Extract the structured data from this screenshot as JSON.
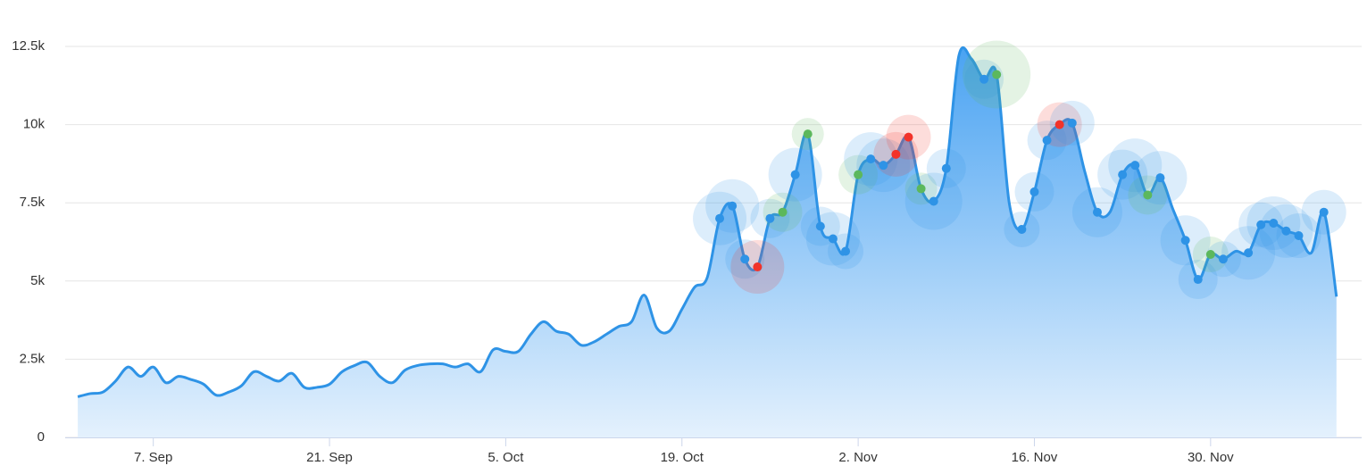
{
  "chart_data": {
    "type": "area",
    "x": [
      1,
      2,
      3,
      4,
      5,
      6,
      7,
      8,
      9,
      10,
      11,
      12,
      13,
      14,
      15,
      16,
      17,
      18,
      19,
      20,
      21,
      22,
      23,
      24,
      25,
      26,
      27,
      28,
      29,
      30,
      31,
      32,
      33,
      34,
      35,
      36,
      37,
      38,
      39,
      40,
      41,
      42,
      43,
      44,
      45,
      46,
      47,
      48,
      49,
      50,
      51,
      52,
      53,
      54,
      55,
      56,
      57,
      58,
      59,
      60,
      61,
      62,
      63,
      64,
      65,
      66,
      67,
      68,
      69,
      70,
      71,
      72,
      73,
      74,
      75,
      76,
      77,
      78,
      79,
      80,
      81,
      82,
      83,
      84,
      85,
      86,
      87,
      88,
      89,
      90,
      91,
      92,
      93,
      94,
      95,
      96,
      97,
      98,
      99,
      100,
      101
    ],
    "series": [
      {
        "color": "#2e93e6",
        "values": [
          1300,
          1400,
          1450,
          1800,
          2250,
          1950,
          2250,
          1750,
          1950,
          1850,
          1700,
          1350,
          1450,
          1650,
          2100,
          1950,
          1800,
          2050,
          1600,
          1600,
          1700,
          2100,
          2300,
          2400,
          1950,
          1750,
          2150,
          2300,
          2350,
          2350,
          2250,
          2350,
          2100,
          2800,
          2750,
          2750,
          3300,
          3700,
          3400,
          3300,
          2950,
          3050,
          3300,
          3550,
          3700,
          4550,
          3500,
          3400,
          4100,
          4800,
          5100,
          7000,
          7400,
          5700,
          5450,
          7000,
          7200,
          8400,
          9700,
          6750,
          6350,
          5950,
          8400,
          8900,
          8700,
          9050,
          9600,
          7950,
          7550,
          8600,
          12200,
          12100,
          11450,
          11600,
          7500,
          6650,
          7850,
          9500,
          10000,
          10050,
          8500,
          7200,
          7200,
          8400,
          8700,
          7750,
          8300,
          7300,
          6300,
          5050,
          5850,
          5700,
          5950,
          5900,
          6800,
          6850,
          6600,
          6450,
          5900,
          7200,
          4500
        ]
      }
    ],
    "markers": {
      "x": [
        52,
        53,
        54,
        55,
        56,
        57,
        58,
        59,
        60,
        61,
        62,
        63,
        64,
        65,
        66,
        67,
        68,
        69,
        70,
        73,
        74,
        76,
        77,
        78,
        79,
        80,
        82,
        84,
        85,
        86,
        87,
        89,
        90,
        91,
        92,
        94,
        95,
        96,
        97,
        98,
        100
      ],
      "colors": [
        "#2e93e6",
        "#2e93e6",
        "#2e93e6",
        "#f2332a",
        "#2e93e6",
        "#5cb85c",
        "#2e93e6",
        "#5cb85c",
        "#2e93e6",
        "#2e93e6",
        "#2e93e6",
        "#5cb85c",
        "#2e93e6",
        "#2e93e6",
        "#f2332a",
        "#f2332a",
        "#5cb85c",
        "#2e93e6",
        "#2e93e6",
        "#2e93e6",
        "#5cb85c",
        "#2e93e6",
        "#2e93e6",
        "#2e93e6",
        "#f2332a",
        "#2e93e6",
        "#2e93e6",
        "#2e93e6",
        "#2e93e6",
        "#5cb85c",
        "#2e93e6",
        "#2e93e6",
        "#2e93e6",
        "#5cb85c",
        "#2e93e6",
        "#2e93e6",
        "#2e93e6",
        "#2e93e6",
        "#2e93e6",
        "#2e93e6",
        "#2e93e6"
      ],
      "sizes": [
        30,
        30,
        22,
        30,
        22,
        22,
        30,
        18,
        22,
        30,
        20,
        22,
        30,
        30,
        25,
        25,
        18,
        32,
        22,
        22,
        38,
        20,
        22,
        22,
        25,
        25,
        28,
        28,
        30,
        22,
        30,
        28,
        22,
        20,
        20,
        30,
        25,
        30,
        30,
        25,
        25
      ]
    },
    "xlim": [
      0,
      103
    ],
    "xticks": [
      {
        "value": 7,
        "label": "7. Sep"
      },
      {
        "value": 21,
        "label": "21. Sep"
      },
      {
        "value": 35,
        "label": "5. Oct"
      },
      {
        "value": 49,
        "label": "19. Oct"
      },
      {
        "value": 63,
        "label": "2. Nov"
      },
      {
        "value": 77,
        "label": "16. Nov"
      },
      {
        "value": 91,
        "label": "30. Nov"
      }
    ],
    "ylim": [
      0,
      12500
    ],
    "yticks": [
      0,
      {
        "value": 2500,
        "label": "2.5k"
      },
      {
        "value": 5000,
        "label": "5k"
      },
      {
        "value": 7500,
        "label": "7.5k"
      },
      {
        "value": 10000,
        "label": "10k"
      },
      {
        "value": 12500,
        "label": "12.5k"
      }
    ],
    "grid": true
  }
}
